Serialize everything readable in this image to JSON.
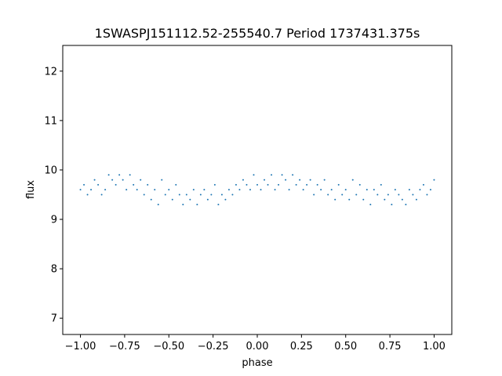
{
  "chart_data": {
    "type": "scatter",
    "title": "1SWASPJ151112.52-255540.7 Period 1737431.375s",
    "xlabel": "phase",
    "ylabel": "flux",
    "xlim": [
      -1.1,
      1.1
    ],
    "ylim": [
      6.67,
      12.52
    ],
    "xticks": [
      -1.0,
      -0.75,
      -0.5,
      -0.25,
      0.0,
      0.25,
      0.5,
      0.75,
      1.0
    ],
    "xtick_labels": [
      "−1.00",
      "−0.75",
      "−0.50",
      "−0.25",
      "0.00",
      "0.25",
      "0.50",
      "0.75",
      "1.00"
    ],
    "yticks": [
      7,
      8,
      9,
      10,
      11,
      12
    ],
    "ytick_labels": [
      "7",
      "8",
      "9",
      "10",
      "11",
      "12"
    ],
    "grid": false,
    "legend": "none",
    "marker_color": "#1f77b4",
    "series": [
      {
        "x": [
          -1.0,
          -0.98,
          -0.96,
          -0.94,
          -0.92,
          -0.9,
          -0.88,
          -0.86,
          -0.84,
          -0.82,
          -0.8,
          -0.78,
          -0.76,
          -0.74,
          -0.72,
          -0.7,
          -0.68,
          -0.66,
          -0.64,
          -0.62,
          -0.6,
          -0.58,
          -0.56,
          -0.54,
          -0.52,
          -0.5,
          -0.48,
          -0.46,
          -0.44,
          -0.42,
          -0.4,
          -0.38,
          -0.36,
          -0.34,
          -0.32,
          -0.3,
          -0.28,
          -0.26,
          -0.24,
          -0.22,
          -0.2,
          -0.18,
          -0.16,
          -0.14,
          -0.12,
          -0.1,
          -0.08,
          -0.06,
          -0.04,
          -0.02,
          0.0,
          0.02,
          0.04,
          0.06,
          0.08,
          0.1,
          0.12,
          0.14,
          0.16,
          0.18,
          0.2,
          0.22,
          0.24,
          0.26,
          0.28,
          0.3,
          0.32,
          0.34,
          0.36,
          0.38,
          0.4,
          0.42,
          0.44,
          0.46,
          0.48,
          0.5,
          0.52,
          0.54,
          0.56,
          0.58,
          0.6,
          0.62,
          0.64,
          0.66,
          0.68,
          0.7,
          0.72,
          0.74,
          0.76,
          0.78,
          0.8,
          0.82,
          0.84,
          0.86,
          0.88,
          0.9,
          0.92,
          0.94,
          0.96,
          0.98,
          1.0
        ],
        "y": [
          9.6,
          9.7,
          9.5,
          9.6,
          9.8,
          9.7,
          9.5,
          9.6,
          9.9,
          9.8,
          9.7,
          9.9,
          9.8,
          9.6,
          9.9,
          9.7,
          9.6,
          9.8,
          9.5,
          9.7,
          9.4,
          9.6,
          9.3,
          9.8,
          9.5,
          9.6,
          9.4,
          9.7,
          9.5,
          9.3,
          9.5,
          9.4,
          9.6,
          9.3,
          9.5,
          9.6,
          9.4,
          9.5,
          9.7,
          9.3,
          9.5,
          9.4,
          9.6,
          9.5,
          9.7,
          9.6,
          9.8,
          9.7,
          9.6,
          9.9,
          9.7,
          9.6,
          9.8,
          9.7,
          9.9,
          9.6,
          9.7,
          9.9,
          9.8,
          9.6,
          9.9,
          9.7,
          9.8,
          9.6,
          9.7,
          9.8,
          9.5,
          9.7,
          9.6,
          9.8,
          9.5,
          9.6,
          9.4,
          9.7,
          9.5,
          9.6,
          9.4,
          9.8,
          9.5,
          9.7,
          9.4,
          9.6,
          9.3,
          9.6,
          9.5,
          9.7,
          9.4,
          9.5,
          9.3,
          9.6,
          9.5,
          9.4,
          9.3,
          9.6,
          9.5,
          9.4,
          9.6,
          9.7,
          9.5,
          9.6,
          9.8
        ]
      }
    ]
  }
}
